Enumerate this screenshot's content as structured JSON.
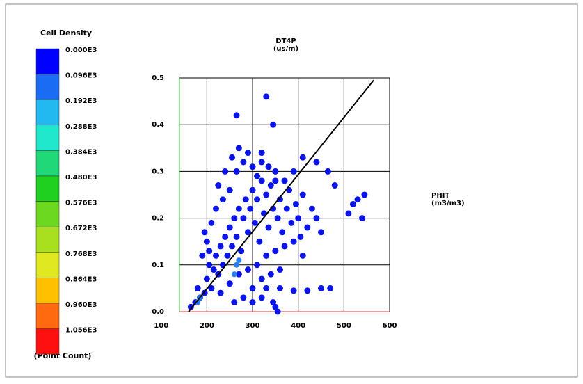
{
  "chart_data": {
    "type": "scatter",
    "x_label": "DT4P",
    "x_unit": "(us/m)",
    "y_label": "PHIT",
    "y_unit": "(m3/m3)",
    "xlim": [
      140,
      600
    ],
    "xticks": [
      100,
      200,
      300,
      400,
      500,
      600
    ],
    "ylim": [
      0,
      0.5
    ],
    "yticks": [
      {
        "value": 0,
        "label": "0.0"
      },
      0.1,
      0.2,
      0.3,
      0.4,
      0.5
    ],
    "grid": true,
    "series": [
      {
        "color": "#0a14e6",
        "x": [
          165,
          175,
          185,
          180,
          195,
          200,
          210,
          205,
          215,
          220,
          225,
          230,
          235,
          240,
          245,
          250,
          255,
          260,
          265,
          270,
          275,
          280,
          285,
          290,
          295,
          300,
          305,
          310,
          315,
          320,
          325,
          330,
          335,
          340,
          345,
          350,
          355,
          360,
          365,
          370,
          375,
          380,
          385,
          390,
          395,
          400,
          405,
          410,
          420,
          430,
          440,
          450,
          190,
          200,
          210,
          220,
          225,
          235,
          240,
          250,
          255,
          265,
          270,
          280,
          290,
          300,
          310,
          320,
          335,
          350,
          230,
          250,
          270,
          290,
          310,
          330,
          350,
          370,
          390,
          410,
          300,
          320,
          340,
          360,
          330,
          360,
          390,
          420,
          450,
          470,
          345,
          350,
          355,
          320,
          300,
          280,
          260,
          265,
          330,
          345,
          205,
          480,
          520,
          530,
          540,
          510,
          545,
          465,
          440,
          410,
          320,
          195
        ],
        "y": [
          0.01,
          0.02,
          0.03,
          0.05,
          0.04,
          0.07,
          0.05,
          0.1,
          0.09,
          0.12,
          0.08,
          0.14,
          0.1,
          0.16,
          0.12,
          0.18,
          0.14,
          0.2,
          0.16,
          0.22,
          0.13,
          0.2,
          0.24,
          0.17,
          0.22,
          0.26,
          0.19,
          0.24,
          0.15,
          0.28,
          0.21,
          0.25,
          0.18,
          0.27,
          0.22,
          0.3,
          0.2,
          0.24,
          0.17,
          0.28,
          0.22,
          0.26,
          0.19,
          0.3,
          0.23,
          0.2,
          0.16,
          0.25,
          0.18,
          0.22,
          0.2,
          0.17,
          0.12,
          0.15,
          0.19,
          0.22,
          0.27,
          0.24,
          0.3,
          0.26,
          0.33,
          0.3,
          0.35,
          0.32,
          0.34,
          0.31,
          0.29,
          0.32,
          0.31,
          0.28,
          0.04,
          0.06,
          0.08,
          0.09,
          0.1,
          0.12,
          0.13,
          0.14,
          0.15,
          0.12,
          0.05,
          0.07,
          0.08,
          0.09,
          0.05,
          0.05,
          0.045,
          0.045,
          0.05,
          0.05,
          0.02,
          0.01,
          0.0,
          0.03,
          0.02,
          0.03,
          0.02,
          0.42,
          0.46,
          0.4,
          0.13,
          0.27,
          0.23,
          0.24,
          0.2,
          0.21,
          0.25,
          0.3,
          0.32,
          0.33,
          0.34,
          0.17
        ]
      },
      {
        "color": "#2a7ff0",
        "x": [
          260,
          265,
          270,
          180,
          185
        ],
        "y": [
          0.08,
          0.1,
          0.11,
          0.02,
          0.03
        ]
      }
    ],
    "fit_line": {
      "color": "#000000",
      "x": [
        160,
        565
      ],
      "y": [
        0,
        0.495
      ]
    },
    "colorbar": {
      "title": "Cell Density",
      "units_label": "(Point Count)",
      "colors": [
        "#0000ff",
        "#1a6cf5",
        "#22b8f0",
        "#20e8cc",
        "#20d878",
        "#20d020",
        "#6cd820",
        "#a8e020",
        "#e0e820",
        "#ffc000",
        "#ff6a10",
        "#ff1010"
      ],
      "levels": [
        {
          "value": 0,
          "label": "0.000E3"
        },
        {
          "value": 96,
          "label": "0.096E3"
        },
        {
          "value": 192,
          "label": "0.192E3"
        },
        {
          "value": 288,
          "label": "0.288E3"
        },
        {
          "value": 384,
          "label": "0.384E3"
        },
        {
          "value": 480,
          "label": "0.480E3"
        },
        {
          "value": 576,
          "label": "0.576E3"
        },
        {
          "value": 672,
          "label": "0.672E3"
        },
        {
          "value": 768,
          "label": "0.768E3"
        },
        {
          "value": 864,
          "label": "0.864E3"
        },
        {
          "value": 960,
          "label": "0.960E3"
        },
        {
          "value": 1056,
          "label": "1.056E3"
        }
      ]
    }
  }
}
